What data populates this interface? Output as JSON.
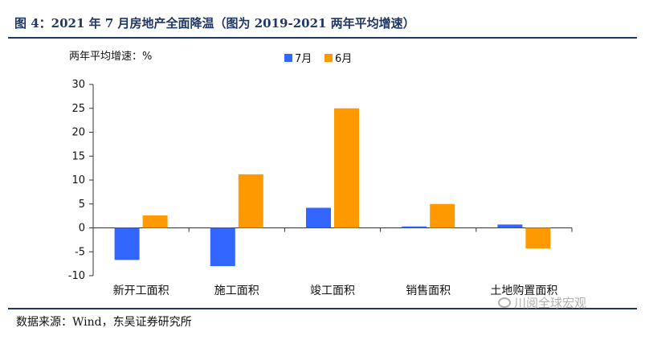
{
  "figure": {
    "title": "图 4：2021 年 7 月房地产全面降温（图为 2019-2021 两年平均增速）",
    "source": "数据来源：Wind，东吴证券研究所",
    "watermark": "川阅全球宏观"
  },
  "chart_data": {
    "type": "bar",
    "title": "",
    "ylabel": "两年平均增速：%",
    "xlabel": "",
    "ylim": [
      -10,
      30
    ],
    "yticks": [
      30,
      25,
      20,
      15,
      10,
      5,
      0,
      -5,
      -10
    ],
    "categories": [
      "新开工面积",
      "施工面积",
      "竣工面积",
      "销售面积",
      "土地购置面积"
    ],
    "series": [
      {
        "name": "7月",
        "color": "#3366ff",
        "values": [
          -6.7,
          -8.0,
          4.2,
          0.3,
          0.7
        ]
      },
      {
        "name": "6月",
        "color": "#ff9900",
        "values": [
          2.6,
          11.2,
          25.0,
          5.0,
          -4.3
        ]
      }
    ],
    "legend": "top-center",
    "grid": false
  }
}
